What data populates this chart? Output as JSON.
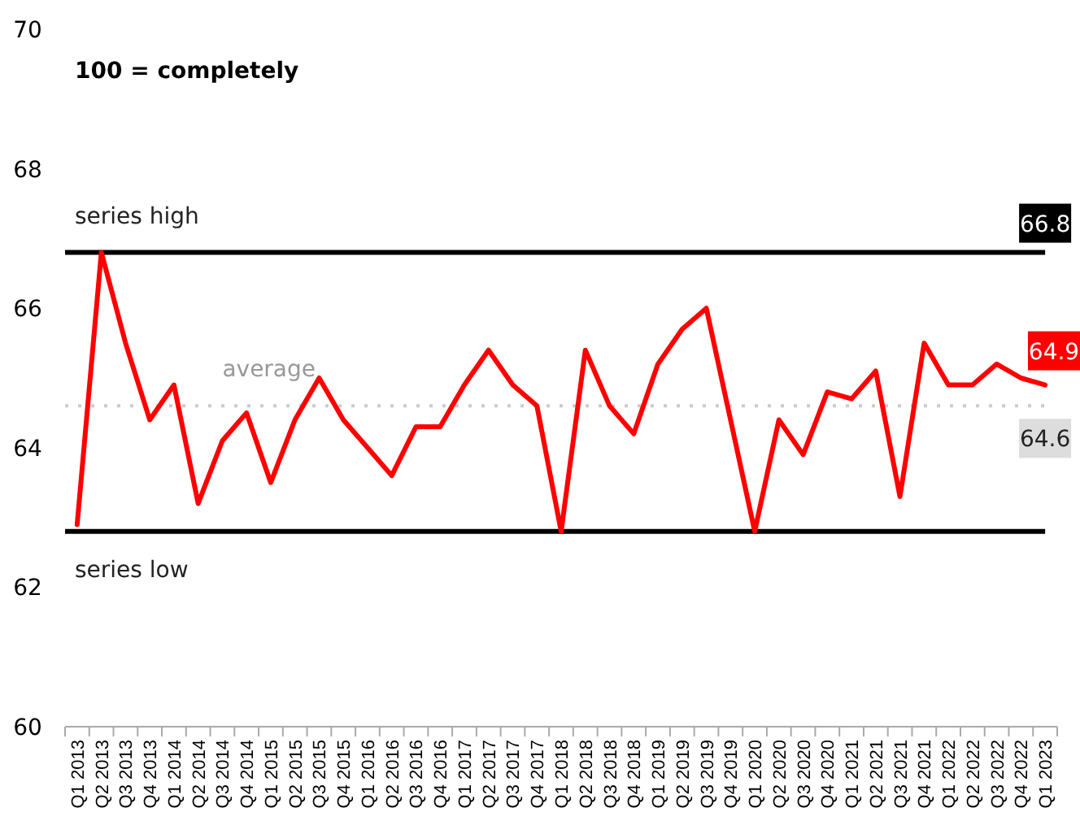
{
  "chart_data": {
    "type": "line",
    "subtitle": "100 = completely",
    "categories": [
      "Q1 2013",
      "Q2 2013",
      "Q3 2013",
      "Q4 2013",
      "Q1 2014",
      "Q2 2014",
      "Q3 2014",
      "Q4 2014",
      "Q1 2015",
      "Q2 2015",
      "Q3 2015",
      "Q4 2015",
      "Q1 2016",
      "Q2 2016",
      "Q3 2016",
      "Q4 2016",
      "Q1 2017",
      "Q2 2017",
      "Q3 2017",
      "Q4 2017",
      "Q1 2018",
      "Q2 2018",
      "Q3 2018",
      "Q4 2018",
      "Q1 2019",
      "Q2 2019",
      "Q3 2019",
      "Q4 2019",
      "Q1 2020",
      "Q2 2020",
      "Q3 2020",
      "Q4 2020",
      "Q1 2021",
      "Q2 2021",
      "Q3 2021",
      "Q4 2021",
      "Q1 2022",
      "Q2 2022",
      "Q3 2022",
      "Q4 2022",
      "Q1 2023"
    ],
    "series": [
      {
        "color": "#ff0000",
        "values": [
          62.9,
          66.8,
          65.5,
          64.4,
          64.9,
          63.2,
          64.1,
          64.5,
          63.5,
          64.4,
          65.0,
          64.4,
          64.0,
          63.6,
          64.3,
          64.3,
          64.9,
          65.4,
          64.9,
          64.6,
          62.8,
          65.4,
          64.6,
          64.2,
          65.2,
          65.7,
          66.0,
          64.4,
          62.8,
          64.4,
          63.9,
          64.8,
          64.7,
          65.1,
          63.3,
          65.5,
          64.9,
          64.9,
          65.2,
          65.0,
          64.9
        ],
        "value_labels": [
          null,
          null,
          null,
          null,
          null,
          null,
          null,
          null,
          null,
          null,
          null,
          null,
          null,
          null,
          null,
          null,
          null,
          null,
          null,
          null,
          null,
          null,
          null,
          null,
          null,
          null,
          null,
          null,
          null,
          null,
          null,
          null,
          null,
          null,
          null,
          null,
          null,
          null,
          null,
          null,
          "64.9"
        ]
      }
    ],
    "ylim": [
      60,
      70
    ],
    "yticks": [
      60,
      62,
      64,
      66,
      68,
      70
    ],
    "grid": false,
    "marker": "none",
    "line_style": "solid",
    "ref_lines": [
      {
        "axis": "y",
        "value": 66.8,
        "label": "series high",
        "color": "#000000",
        "line_style": "solid"
      },
      {
        "axis": "y",
        "value": 62.8,
        "label": "series low",
        "color": "#000000",
        "line_style": "solid"
      },
      {
        "axis": "y",
        "value": 64.6,
        "label": "average",
        "color": "#cccccc",
        "line_style": "dotted"
      }
    ],
    "annotations": [
      {
        "text": "66.8",
        "x": "Q1 2023",
        "y": 66.8
      },
      {
        "text": "64.6",
        "x": "Q1 2023",
        "y": 64.6
      }
    ]
  }
}
